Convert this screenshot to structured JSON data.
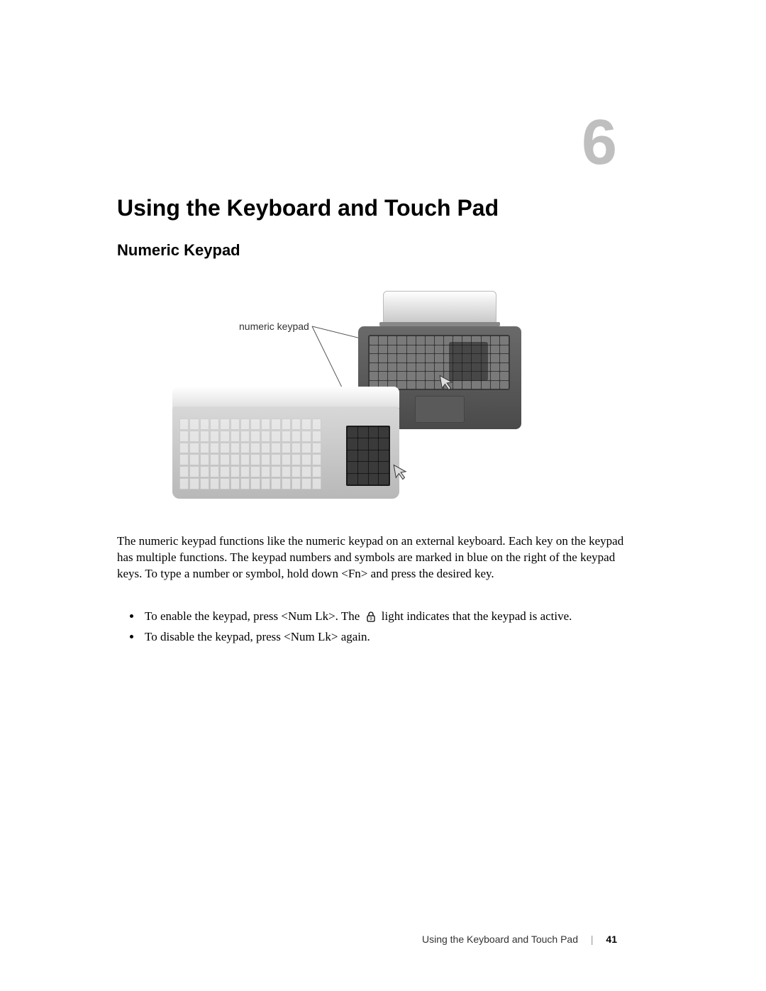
{
  "chapter": {
    "number": "6",
    "title": "Using the Keyboard and Touch Pad",
    "number_color": "#bfbfbf"
  },
  "section": {
    "title": "Numeric Keypad"
  },
  "figure": {
    "callout_label": "numeric keypad",
    "leader_color": "#555555"
  },
  "paragraph": "The numeric keypad functions like the numeric keypad on an external keyboard. Each key on the keypad has multiple functions. The keypad numbers and symbols are marked in blue on the right of the keypad keys. To type a number or symbol, hold down <Fn> and press the desired key.",
  "bullets": [
    {
      "pre": "To enable the keypad, press <Num Lk>. The ",
      "post": " light indicates that the keypad is active.",
      "icon": "numlock-icon"
    },
    {
      "pre": "To disable the keypad, press <Num Lk> again.",
      "post": "",
      "icon": null
    }
  ],
  "footer": {
    "section": "Using the Keyboard and Touch Pad",
    "page": "41"
  },
  "style": {
    "page_bg": "#ffffff",
    "heading_font": "Arial, Helvetica, sans-serif",
    "body_font": "Georgia, 'Times New Roman', serif"
  }
}
